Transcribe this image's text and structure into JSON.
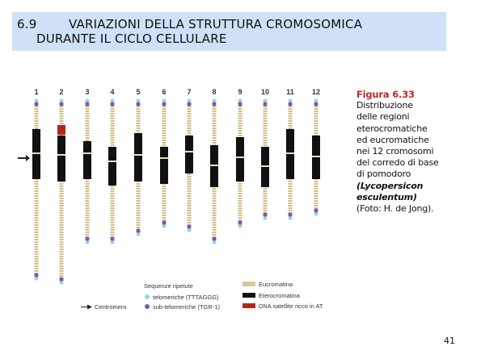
{
  "header": {
    "number": "6.9",
    "title_lines": [
      "VARIAZIONI DELLA STRUTTURA CROMOSOMICA",
      "DURANTE IL CICLO CELLULARE"
    ]
  },
  "figure": {
    "chromosome_labels": [
      "1",
      "2",
      "3",
      "4",
      "5",
      "6",
      "7",
      "8",
      "9",
      "10",
      "11",
      "12"
    ],
    "legend": {
      "heading": "Sequenze ripetute",
      "telomeric": "telomeriche (TTTAGGG)",
      "subtelomeric": "sub-telomeriche (TGR-1)",
      "centromere": "Centromero",
      "euchromatin": "Eucromatina",
      "heterochromatin": "Eterocromatina",
      "satellite": "DNA satellite ricco in AT"
    }
  },
  "caption": {
    "label": "Figura 6.33",
    "lines": [
      "Distribuzione",
      "delle regioni",
      "eterocromatiche",
      "ed eucromatiche",
      "nei 12 cromosomi",
      "del corredo di base",
      "di pomodoro"
    ],
    "species_lines": [
      "(Lycopersicon",
      "esculentum)"
    ],
    "credit": "(Foto: H. de Jong)."
  },
  "page_number": "41"
}
